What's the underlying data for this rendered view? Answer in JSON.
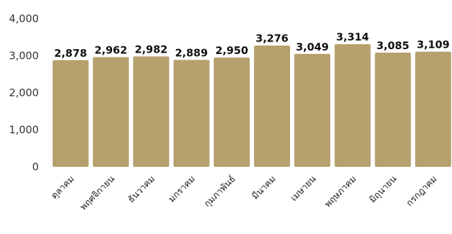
{
  "chart_data": {
    "type": "bar",
    "title": "",
    "xlabel": "",
    "ylabel": "",
    "categories": [
      "ตุลาคม",
      "พฤศจิกายน",
      "ธันวาคม",
      "มกราคม",
      "กุมภาพันธ์",
      "มีนาคม",
      "เมษายน",
      "พฤษภาคม",
      "มิถุนายน",
      "กรกฎาคม"
    ],
    "values": [
      2878,
      2962,
      2982,
      2889,
      2950,
      3276,
      3049,
      3314,
      3085,
      3109
    ],
    "value_labels": [
      "2,878",
      "2,962",
      "2,982",
      "2,889",
      "2,950",
      "3,276",
      "3,049",
      "3,314",
      "3,085",
      "3,109"
    ],
    "ylim": [
      0,
      4000
    ],
    "yticks": [
      0,
      1000,
      2000,
      3000,
      4000
    ],
    "ytick_labels": [
      "0",
      "1,000",
      "2,000",
      "3,000",
      "4,000"
    ],
    "grid": false,
    "legend": "none",
    "bar_color": "#B5A06E"
  }
}
